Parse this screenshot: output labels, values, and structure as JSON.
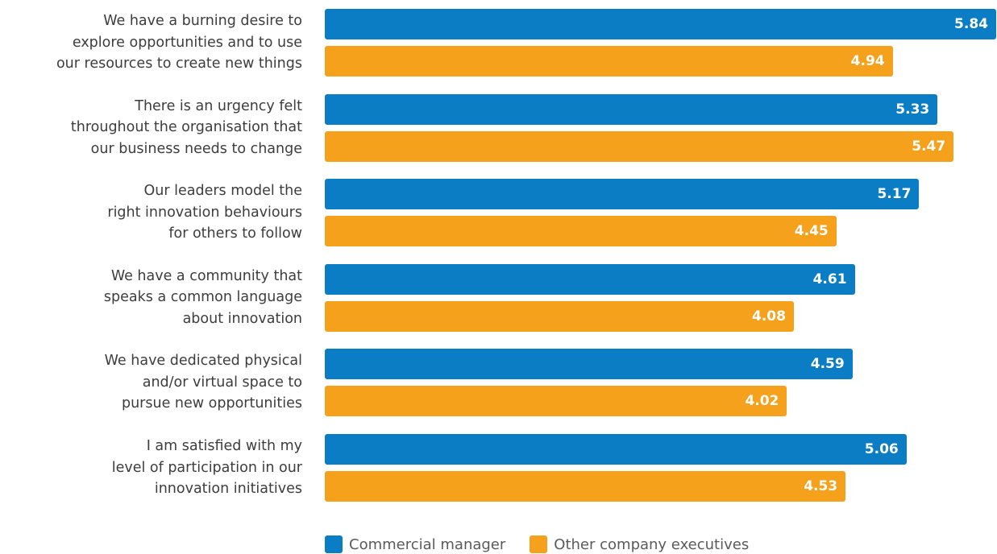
{
  "colors": {
    "series_a": "#0a7dc4",
    "series_b": "#f5a11c"
  },
  "chart_data": {
    "type": "bar",
    "orientation": "horizontal",
    "categories": [
      [
        "We have a burning desire to",
        "explore opportunities and to use",
        "our resources to create new things"
      ],
      [
        "There is an urgency felt",
        "throughout the organisation that",
        "our business needs to change"
      ],
      [
        "Our leaders model the",
        "right innovation behaviours",
        "for others to follow"
      ],
      [
        "We have a community that",
        "speaks a common language",
        "about innovation"
      ],
      [
        "We have dedicated physical",
        "and/or virtual space to",
        "pursue new opportunities"
      ],
      [
        "I am satisfied with my",
        "level of participation in our",
        "innovation initiatives"
      ]
    ],
    "series": [
      {
        "name": "Commercial manager",
        "values": [
          5.84,
          5.33,
          5.17,
          4.61,
          4.59,
          5.06
        ]
      },
      {
        "name": "Other company executives",
        "values": [
          4.94,
          5.47,
          4.45,
          4.08,
          4.02,
          4.53
        ]
      }
    ],
    "value_labels": [
      [
        "5.84",
        "5.33",
        "5.17",
        "4.61",
        "4.59",
        "5.06"
      ],
      [
        "4.94",
        "5.47",
        "4.45",
        "4.08",
        "4.02",
        "4.53"
      ]
    ],
    "xlim": [
      0,
      5.84
    ],
    "grid": false,
    "legend_position": "bottom"
  }
}
